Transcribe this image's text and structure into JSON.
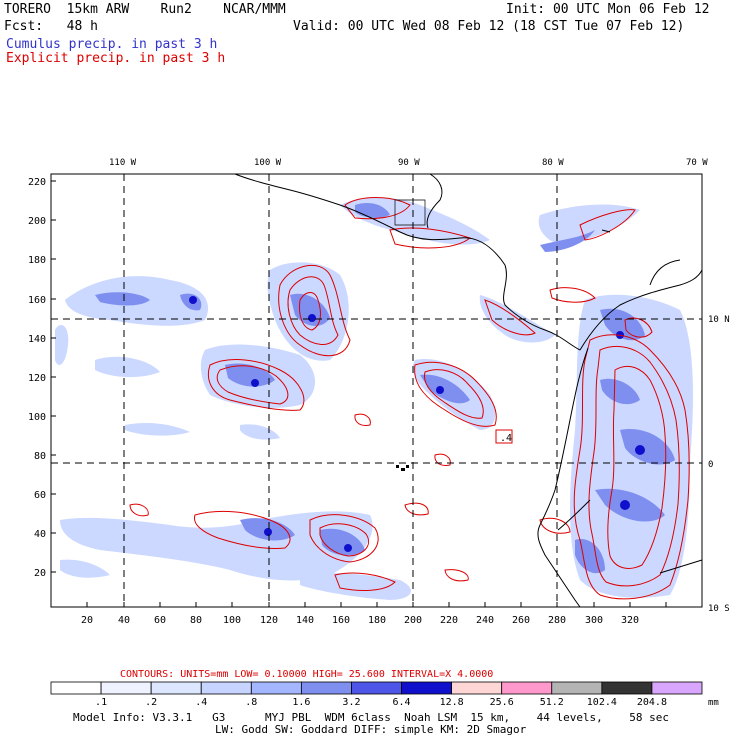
{
  "header": {
    "model": "TORERO  15km ARW    Run2    NCAR/MMM",
    "init": "Init: 00 UTC Mon 06 Feb 12",
    "fcst": "Fcst:   48 h",
    "valid": "Valid: 00 UTC Wed 08 Feb 12 (18 CST Tue 07 Feb 12)",
    "cumulus_label": "Cumulus precip. in past 3 h",
    "explicit_label": "Explicit precip. in past 3 h"
  },
  "colors": {
    "cumulus": "#3333cc",
    "explicit": "#dd0000",
    "grid": "#000000"
  },
  "map": {
    "lon_labels": [
      "110 W",
      "100 W",
      "90 W",
      "80 W",
      "70 W"
    ],
    "lat_labels": [
      "10 N",
      "0",
      "10 S"
    ],
    "x_ticks": [
      "20",
      "40",
      "60",
      "80",
      "100",
      "120",
      "140",
      "160",
      "180",
      "200",
      "220",
      "240",
      "260",
      "280",
      "300",
      "320"
    ],
    "y_ticks": [
      "220",
      "200",
      "180",
      "160",
      "140",
      "120",
      "100",
      "80",
      "60",
      "40",
      "20"
    ],
    "box_label": ".4"
  },
  "contours": {
    "text": "CONTOURS:  UNITS=mm  LOW= 0.10000      HIGH=  25.600      INTERVAL=X  4.0000"
  },
  "colorbar": {
    "values": [
      ".1",
      ".2",
      ".4",
      ".8",
      "1.6",
      "3.2",
      "6.4",
      "12.8",
      "25.6",
      "51.2",
      "102.4",
      "204.8"
    ],
    "unit": "mm",
    "colors": [
      "#ffffff",
      "#eef3ff",
      "#dde6ff",
      "#c6d4ff",
      "#a3b6ff",
      "#7f8ff0",
      "#4f55e6",
      "#1010cc",
      "#ffd6d6",
      "#ff99cc",
      "#b4b4b4",
      "#333333",
      "#d9a6ff"
    ]
  },
  "footer": {
    "line1": "Model Info: V3.3.1   G3      MYJ PBL  WDM 6class  Noah LSM  15 km,    44 levels,    58 sec",
    "line2": "LW: Godd SW: Goddard DIFF: simple KM: 2D Smagor"
  }
}
